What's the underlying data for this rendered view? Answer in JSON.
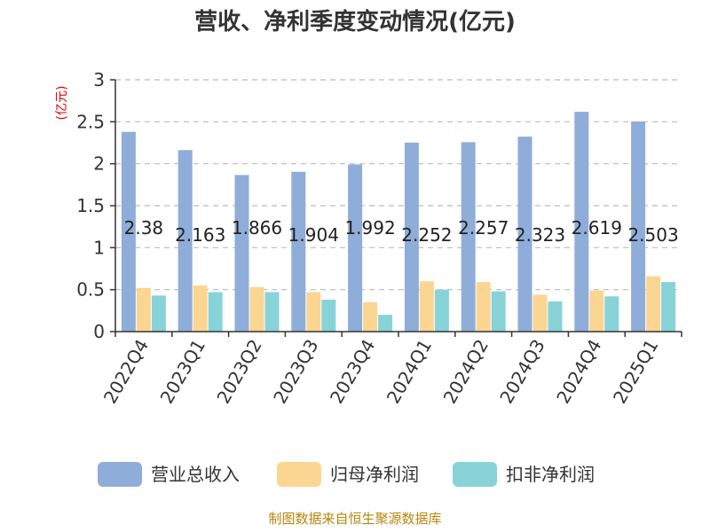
{
  "title": "营收、净利季度变动情况(亿元)",
  "unit_label": "(亿元)",
  "footer": "制图数据来自恒生聚源数据库",
  "colors": {
    "revenue": "#8fadd9",
    "net_profit": "#fbd592",
    "deducted_profit": "#87d3d8",
    "axis": "#333333",
    "grid": "#bbbbbb",
    "unit": "#e00000",
    "footer": "#b8860b"
  },
  "chart_data": {
    "type": "bar",
    "title": "营收、净利季度变动情况(亿元)",
    "ylabel": "(亿元)",
    "xlabel": "",
    "ylim": [
      0,
      3
    ],
    "yticks": [
      "0",
      "0.5",
      "1",
      "1.5",
      "2",
      "2.5",
      "3"
    ],
    "grid": true,
    "legend": "bottom",
    "categories": [
      "2022Q4",
      "2023Q1",
      "2023Q2",
      "2023Q3",
      "2023Q4",
      "2024Q1",
      "2024Q2",
      "2024Q3",
      "2024Q4",
      "2025Q1"
    ],
    "series": [
      {
        "name": "营业总收入",
        "values": [
          2.38,
          2.163,
          1.866,
          1.904,
          1.992,
          2.252,
          2.257,
          2.323,
          2.619,
          2.503
        ]
      },
      {
        "name": "归母净利润",
        "values": [
          0.52,
          0.55,
          0.53,
          0.47,
          0.35,
          0.6,
          0.59,
          0.44,
          0.49,
          0.66
        ]
      },
      {
        "name": "扣非净利润",
        "values": [
          0.43,
          0.47,
          0.47,
          0.38,
          0.2,
          0.5,
          0.48,
          0.36,
          0.42,
          0.59
        ]
      }
    ],
    "data_labels": [
      "2.38",
      "2.163",
      "1.866",
      "1.904",
      "1.992",
      "2.252",
      "2.257",
      "2.323",
      "2.619",
      "2.503"
    ]
  }
}
